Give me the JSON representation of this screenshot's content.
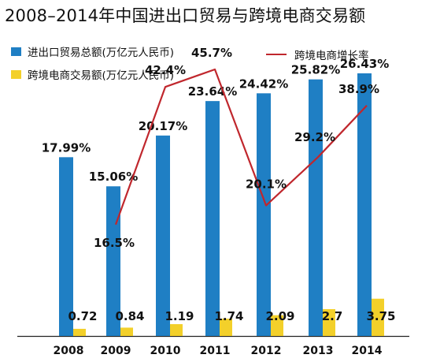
{
  "chart_data": {
    "type": "bar",
    "title": "2008–2014年中国进出口贸易与跨境电商交易额",
    "categories": [
      "2008",
      "2009",
      "2010",
      "2011",
      "2012",
      "2013",
      "2014"
    ],
    "series": [
      {
        "name": "进出口贸易总额(万亿元人民币)",
        "kind": "bar",
        "color": "#1f7fc4",
        "values": [
          17.99,
          15.06,
          20.17,
          23.64,
          24.42,
          25.82,
          26.43
        ],
        "labels": [
          "17.99%",
          "15.06%",
          "20.17%",
          "23.64%",
          "24.42%",
          "25.82%",
          "26.43%"
        ]
      },
      {
        "name": "跨境电商交易额(万亿元人民币)",
        "kind": "bar",
        "color": "#f3d02a",
        "values": [
          0.72,
          0.84,
          1.19,
          1.74,
          2.09,
          2.7,
          3.75
        ],
        "labels": [
          "0.72",
          "0.84",
          "1.19",
          "1.74",
          "2.09",
          "2.7",
          "3.75"
        ]
      },
      {
        "name": "跨境电商增长率",
        "kind": "line",
        "color": "#c0272d",
        "values": [
          null,
          16.5,
          42.4,
          45.7,
          20.1,
          29.2,
          38.9
        ],
        "labels": [
          "",
          "16.5%",
          "42.4%",
          "45.7%",
          "20.1%",
          "29.2%",
          "38.9%"
        ]
      }
    ],
    "ylim": [
      0,
      30
    ],
    "line_ylim": [
      0,
      50
    ],
    "legend_position": "top",
    "grid": false
  }
}
